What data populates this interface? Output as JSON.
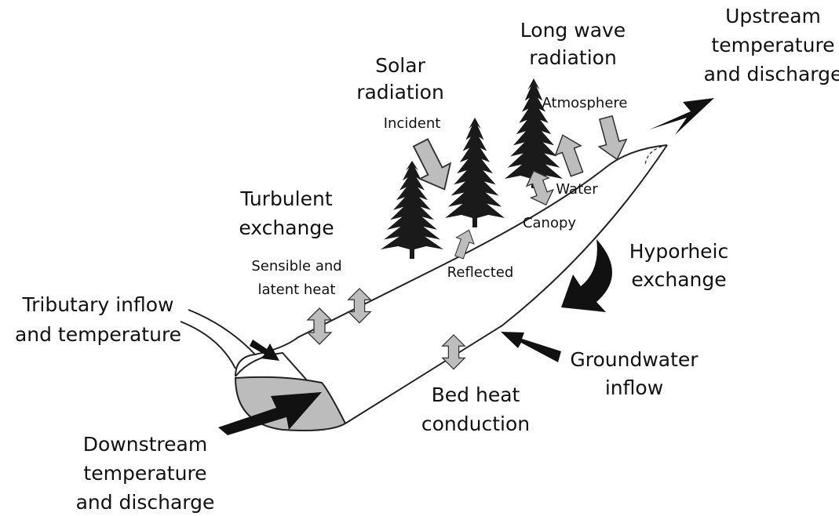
{
  "labels": [
    {
      "lines": [
        "Long wave",
        "radiation"
      ]
    },
    {
      "lines": [
        "Upstream",
        "temperature",
        "and discharge"
      ]
    },
    {
      "lines": [
        "Solar",
        "radiation"
      ]
    },
    {
      "lines": [
        "Incident"
      ]
    },
    {
      "lines": [
        "Atmosphere"
      ]
    },
    {
      "lines": [
        "Water"
      ]
    },
    {
      "lines": [
        "Canopy"
      ]
    },
    {
      "lines": [
        "Turbulent",
        "exchange"
      ]
    },
    {
      "lines": [
        "Sensible and",
        "latent heat"
      ]
    },
    {
      "lines": [
        "Reflected"
      ]
    },
    {
      "lines": [
        "Hyporheic",
        "exchange"
      ]
    },
    {
      "lines": [
        "Tributary inflow",
        "and temperature"
      ]
    },
    {
      "lines": [
        "Groundwater",
        "inflow"
      ]
    },
    {
      "lines": [
        "Bed heat",
        "conduction"
      ]
    },
    {
      "lines": [
        "Downstream",
        "temperature",
        "and discharge"
      ]
    }
  ]
}
